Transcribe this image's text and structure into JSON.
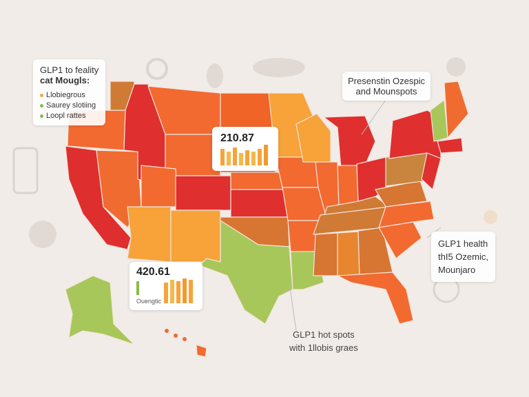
{
  "legend_box": {
    "title_lines": [
      "GLP1 to feality",
      "cat Mougls:"
    ],
    "items": [
      "Llobiegrous",
      "Saurey slotiing",
      "Loopl rattes"
    ]
  },
  "callout_top_right": {
    "lines": [
      "Presenstin Ozespic",
      "and Mounspots"
    ]
  },
  "stat_card_center": {
    "value": "210.87"
  },
  "stat_card_left": {
    "value": "420.61",
    "label": "Ouengtic"
  },
  "callout_right": {
    "lines": [
      "GLP1 health",
      "thI5 Ozemic,",
      "Mounjaro"
    ]
  },
  "caption_bottom": {
    "lines": [
      "GLP1 hot spots",
      "with 1llobis graes"
    ]
  }
}
